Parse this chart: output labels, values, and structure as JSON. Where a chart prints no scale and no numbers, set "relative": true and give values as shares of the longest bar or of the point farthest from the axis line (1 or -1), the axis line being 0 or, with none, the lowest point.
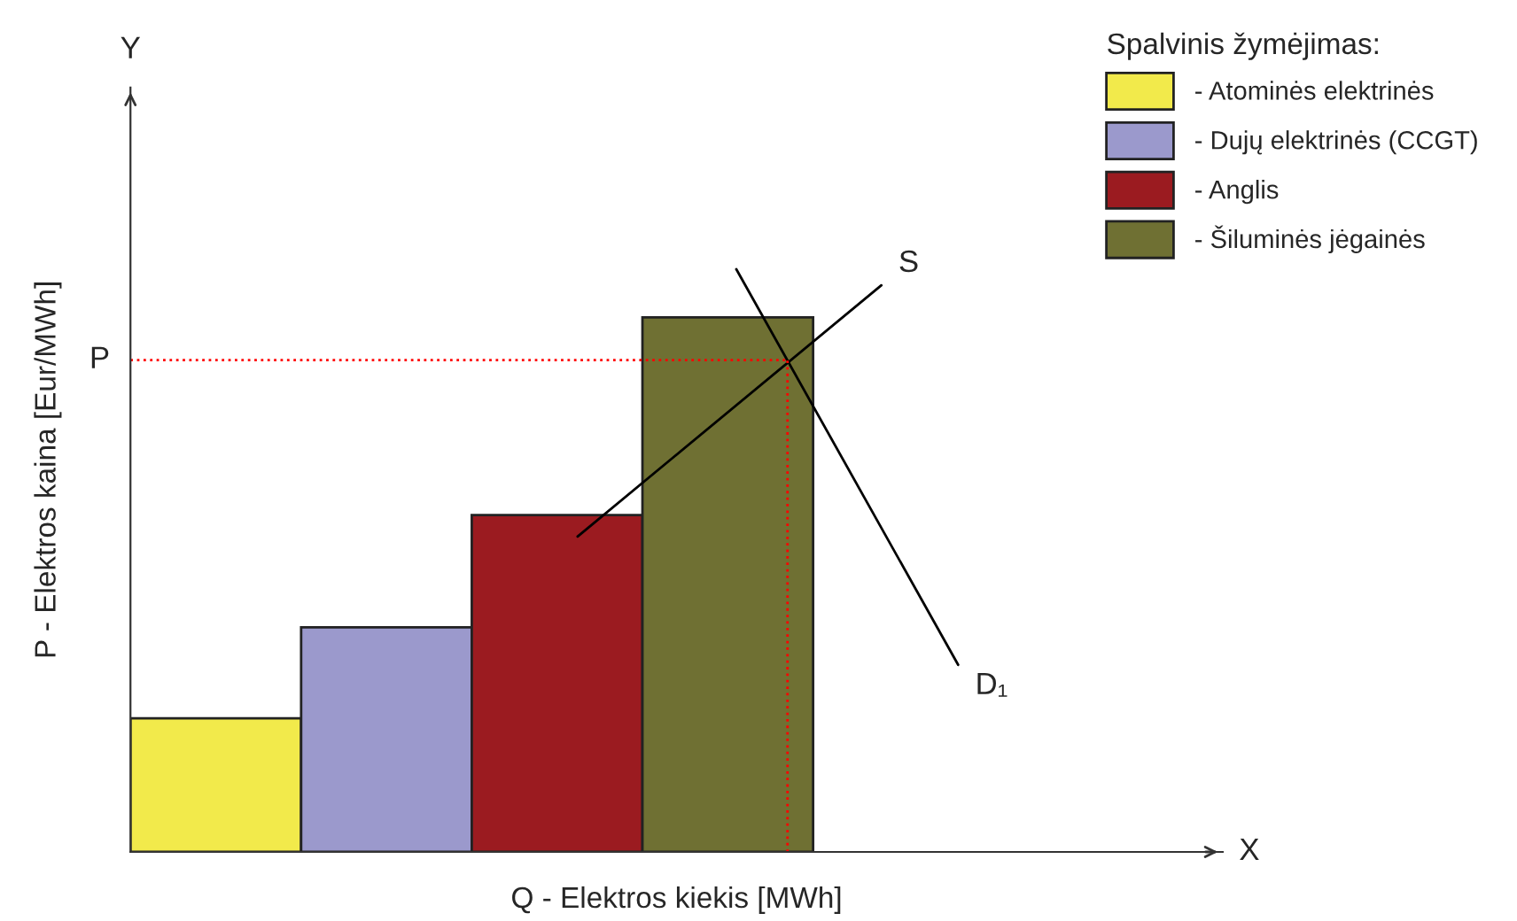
{
  "chart_data": {
    "type": "bar",
    "relative": true,
    "xlabel": "Q - Elektros kiekis [MWh]",
    "ylabel": "P - Elektros kaina [Eur/MWh]",
    "legend_title": "Spalvinis žymėjimas:",
    "legend": "top right",
    "tick_labels": false,
    "stacked": true,
    "categories": [
      null,
      null,
      null,
      null
    ],
    "series": [
      {
        "name": "- Atominės elektrinės",
        "color": "#f2ea4b",
        "values": [
          0.25,
          null,
          null,
          null
        ]
      },
      {
        "name": "- Dujų elektrinės (CCGT)",
        "color": "#9b99cc",
        "values": [
          null,
          0.42,
          null,
          null
        ]
      },
      {
        "name": "- Anglis",
        "color": "#9b1b20",
        "values": [
          null,
          null,
          0.63,
          null
        ]
      },
      {
        "name": "- Šiluminės jėgainės",
        "color": "#6f7033",
        "values": [
          null,
          null,
          null,
          1.0
        ]
      }
    ],
    "ref_lines": [
      {
        "axis": "y",
        "value": 0.92,
        "label": "P",
        "color": "#ff0000",
        "line_style": "dotted"
      }
    ],
    "annotations": [
      "S",
      "D₁",
      "X",
      "Y"
    ]
  }
}
